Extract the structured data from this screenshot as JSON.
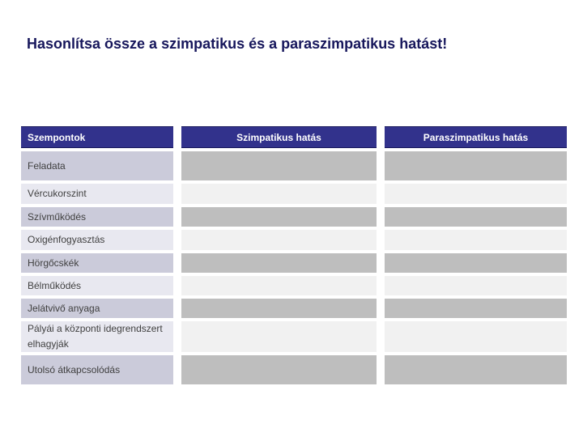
{
  "slide": {
    "title": "Hasonlítsa össze a szimpatikus és a paraszimpatikus hatást!"
  },
  "table": {
    "headers": [
      "Szempontok",
      "Szimpatikus hatás",
      "Paraszimpatikus hatás"
    ],
    "rows": [
      {
        "label": "Feladata",
        "szimpatikus": "",
        "paraszimpatikus": ""
      },
      {
        "label": "Vércukorszint",
        "szimpatikus": "",
        "paraszimpatikus": ""
      },
      {
        "label": "Szívműködés",
        "szimpatikus": "",
        "paraszimpatikus": ""
      },
      {
        "label": "Oxigénfogyasztás",
        "szimpatikus": "",
        "paraszimpatikus": ""
      },
      {
        "label": "Hörgőcskék",
        "szimpatikus": "",
        "paraszimpatikus": ""
      },
      {
        "label": "Bélműködés",
        "szimpatikus": "",
        "paraszimpatikus": ""
      },
      {
        "label": "Jelátvivő anyaga",
        "szimpatikus": "",
        "paraszimpatikus": ""
      },
      {
        "label": "Pályái a központi idegrendszert elhagyják",
        "szimpatikus": "",
        "paraszimpatikus": ""
      },
      {
        "label": "Utolsó átkapcsolódás",
        "szimpatikus": "",
        "paraszimpatikus": ""
      }
    ]
  },
  "colors": {
    "page_bg": "#ffffff",
    "title_text": "#17175c",
    "header_bg": "#32328c",
    "header_border": "#1c1c5e",
    "header_text": "#ffffff",
    "label_row_dark_bg": "#cbcbda",
    "label_row_light_bg": "#e8e8f0",
    "value_row_dark_bg": "#bebebe",
    "value_row_light_bg": "#f1f1f1",
    "label_text": "#404040"
  }
}
